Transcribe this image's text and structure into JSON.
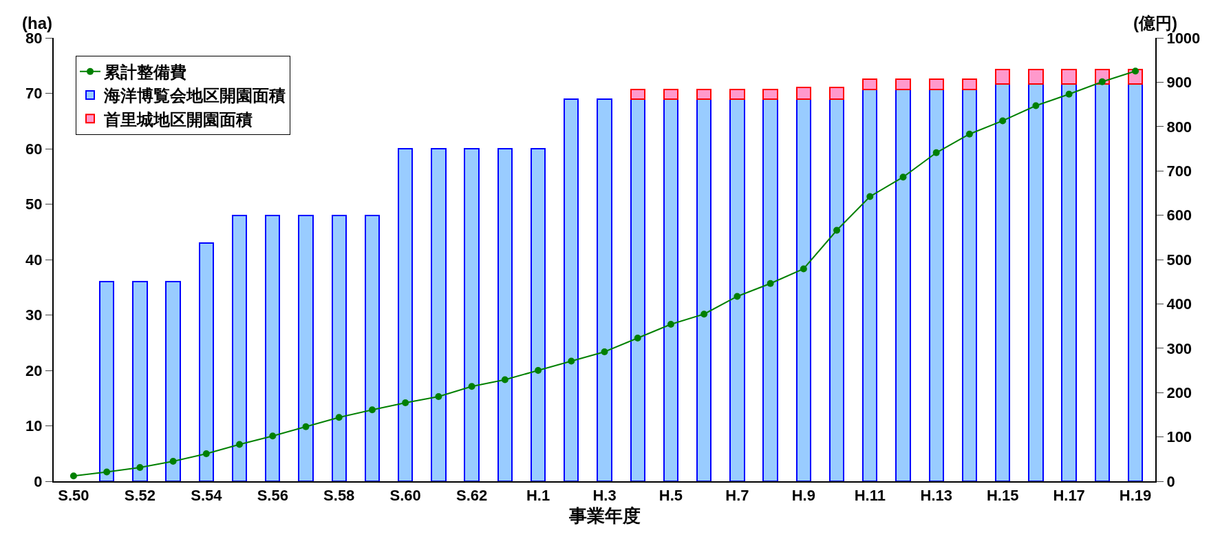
{
  "chart_data": {
    "type": "bar",
    "stacked": true,
    "categories": [
      "S.50",
      null,
      "S.52",
      null,
      "S.54",
      null,
      "S.56",
      null,
      "S.58",
      null,
      "S.60",
      null,
      "S.62",
      null,
      "H.1",
      null,
      "H.3",
      null,
      "H.5",
      null,
      "H.7",
      null,
      "H.9",
      null,
      "H.11",
      null,
      "H.13",
      null,
      "H.15",
      null,
      "H.17",
      null,
      "H.19"
    ],
    "xlabel": "事業年度",
    "ylabel": "(ha)",
    "y2label": "(億円)",
    "ylim": [
      0,
      80
    ],
    "yticks": [
      0,
      10,
      20,
      30,
      40,
      50,
      60,
      70,
      80
    ],
    "y2lim": [
      0,
      1000
    ],
    "y2ticks": [
      0,
      100,
      200,
      300,
      400,
      500,
      600,
      700,
      800,
      900,
      1000
    ],
    "grid": false,
    "legend": "top left",
    "series": [
      {
        "name": "海洋博覧会地区開園面積",
        "color": "#99ccff",
        "values": [
          null,
          36,
          36,
          36,
          43,
          48,
          48,
          48,
          48,
          48,
          60,
          60,
          60,
          60,
          60,
          69,
          69,
          69,
          69,
          69,
          69,
          69,
          69,
          69,
          70.7,
          70.7,
          70.7,
          70.7,
          71.7,
          71.7,
          71.7,
          71.7,
          71.7
        ]
      },
      {
        "name": "首里城地区開園面積",
        "color": "#ff99cc",
        "values": [
          null,
          null,
          null,
          null,
          null,
          null,
          null,
          null,
          null,
          null,
          null,
          null,
          null,
          null,
          null,
          null,
          null,
          1.7,
          1.7,
          1.7,
          1.7,
          1.7,
          2.0,
          2.0,
          1.9,
          1.9,
          1.9,
          1.9,
          2.6,
          2.6,
          2.6,
          2.6,
          2.6
        ]
      },
      {
        "name": "累計整備費",
        "type": "line",
        "axis": "y2",
        "color": "#008000",
        "marker": "circle",
        "line_style": "solid",
        "values": [
          12,
          21,
          31,
          45,
          62,
          83,
          102,
          123,
          144,
          161,
          177,
          191,
          214,
          229,
          250,
          271,
          292,
          323,
          354,
          377,
          417,
          446,
          479,
          566,
          642,
          686,
          741,
          783,
          813,
          847,
          873,
          901,
          925
        ]
      }
    ]
  }
}
